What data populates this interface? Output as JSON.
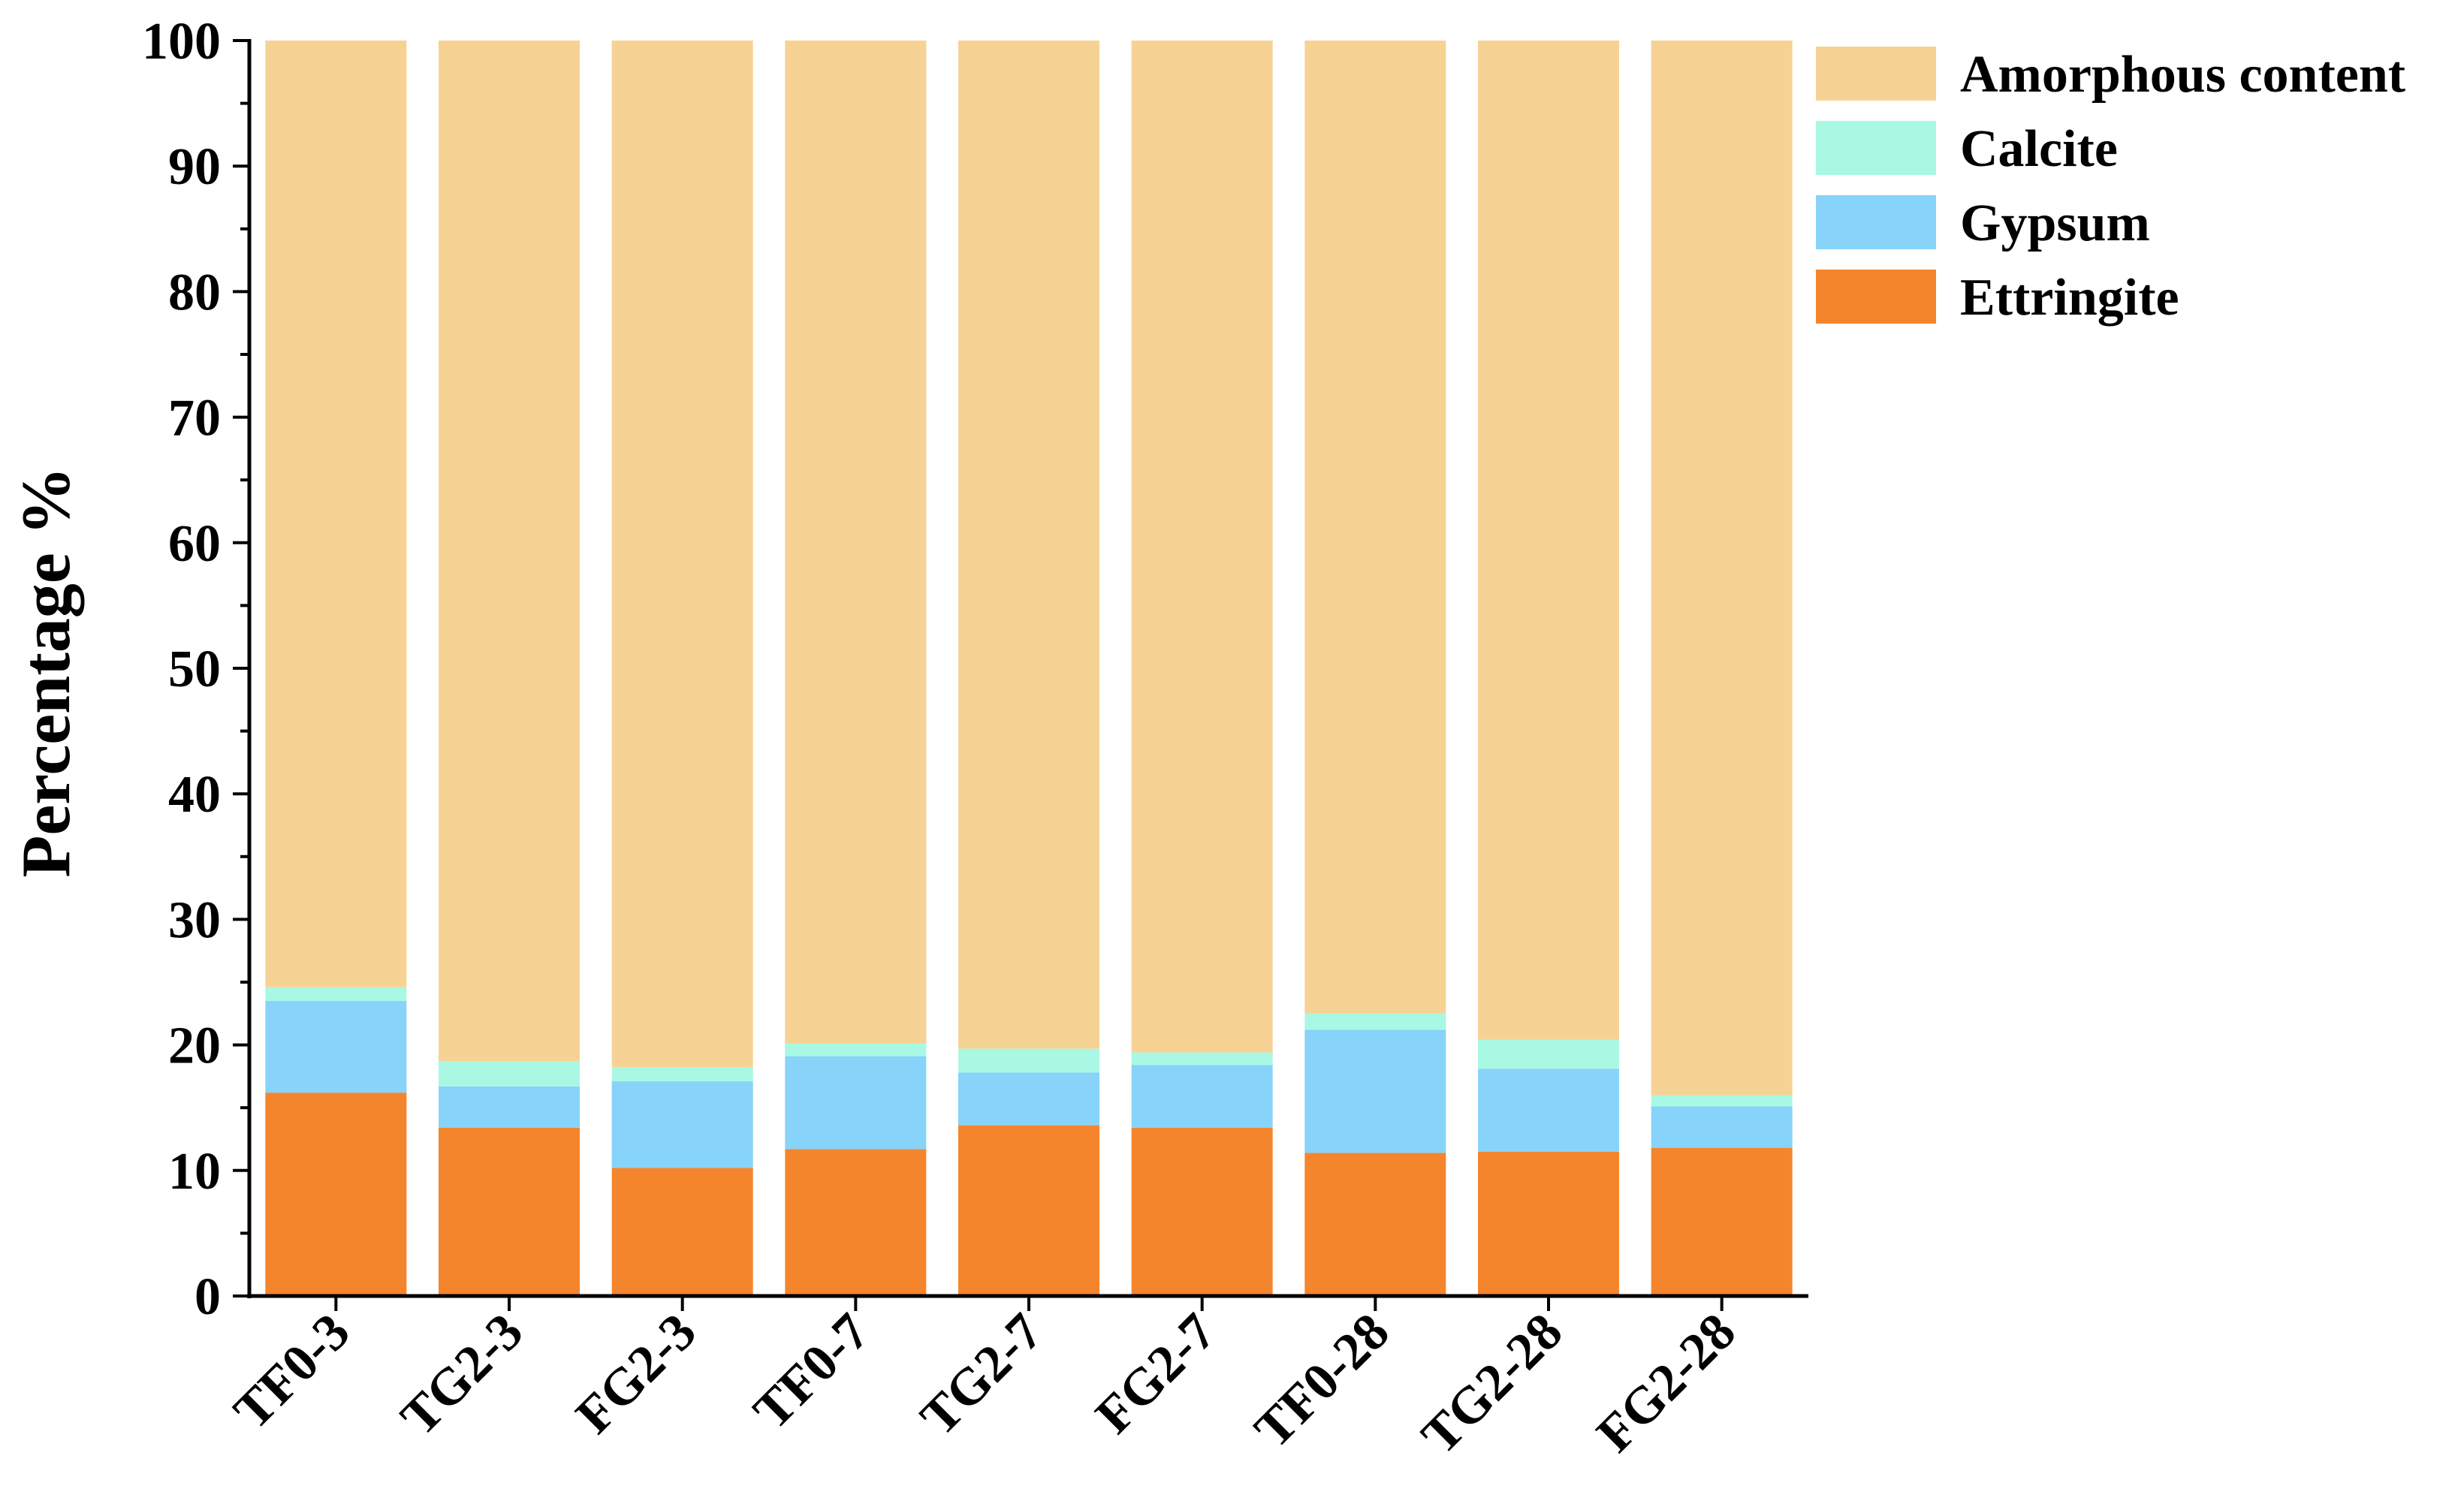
{
  "chart_data": {
    "type": "bar",
    "stacked": true,
    "categories": [
      "TF0-3",
      "TG2-3",
      "FG2-3",
      "TF0-7",
      "TG2-7",
      "FG2-7",
      "TF0-28",
      "TG2-28",
      "FG2-28"
    ],
    "series": [
      {
        "name": "Ettringite",
        "color": "#F5852C",
        "values": [
          16.2,
          13.4,
          10.2,
          11.7,
          13.6,
          13.4,
          11.4,
          11.5,
          11.8
        ]
      },
      {
        "name": "Gypsum",
        "color": "#87D3FA",
        "values": [
          7.3,
          3.3,
          6.9,
          7.4,
          4.2,
          5.0,
          9.8,
          6.6,
          3.3
        ]
      },
      {
        "name": "Calcite",
        "color": "#A9F8E4",
        "values": [
          1.1,
          2.0,
          1.1,
          1.0,
          1.9,
          1.0,
          1.3,
          2.3,
          0.9
        ]
      },
      {
        "name": "Amorphous content",
        "color": "#F6D394",
        "values": [
          75.4,
          81.3,
          81.8,
          79.9,
          80.3,
          80.6,
          77.5,
          79.6,
          84.0
        ]
      }
    ],
    "xlabel": "",
    "ylabel": "Percentage %",
    "ylim": [
      0,
      100
    ],
    "yticks": [
      0,
      10,
      20,
      30,
      40,
      50,
      60,
      70,
      80,
      90,
      100
    ],
    "grid": false,
    "legend_position": "top-right",
    "legend_order": [
      "Amorphous content",
      "Calcite",
      "Gypsum",
      "Ettringite"
    ]
  }
}
